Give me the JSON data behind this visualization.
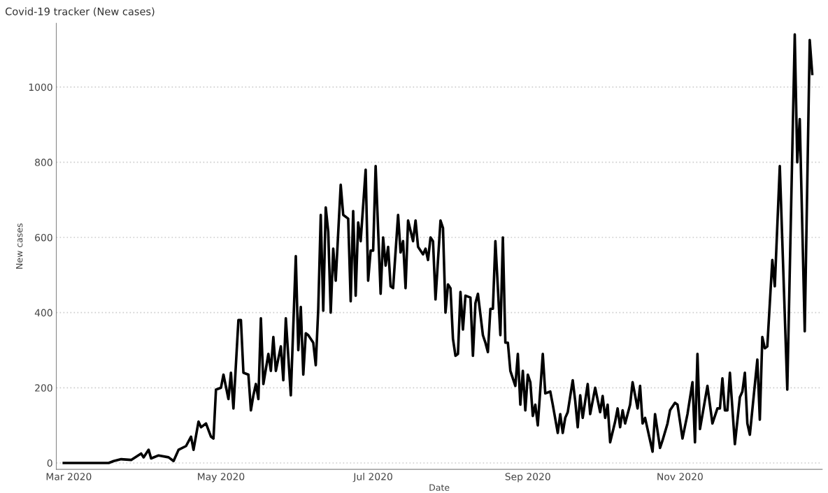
{
  "chart_data": {
    "type": "line",
    "title": "Covid-19 tracker (New cases)",
    "xlabel": "Date",
    "ylabel": "New cases",
    "xlim": [
      "2020-02-25",
      "2020-12-28"
    ],
    "ylim": [
      -17,
      1170
    ],
    "xticks": [
      {
        "value": "2020-03-01",
        "label": "Mar 2020"
      },
      {
        "value": "2020-05-01",
        "label": "May 2020"
      },
      {
        "value": "2020-07-01",
        "label": "Jul 2020"
      },
      {
        "value": "2020-09-01",
        "label": "Sep 2020"
      },
      {
        "value": "2020-11-01",
        "label": "Nov 2020"
      }
    ],
    "yticks": [
      0,
      200,
      400,
      600,
      800,
      1000
    ],
    "grid": "y",
    "series": [
      {
        "color": "#000000",
        "x": [
          "2020-02-28",
          "2020-03-17",
          "2020-03-19",
          "2020-03-22",
          "2020-03-26",
          "2020-03-30",
          "2020-03-31",
          "2020-04-02",
          "2020-04-03",
          "2020-04-06",
          "2020-04-10",
          "2020-04-12",
          "2020-04-14",
          "2020-04-17",
          "2020-04-19",
          "2020-04-20",
          "2020-04-22",
          "2020-04-23",
          "2020-04-25",
          "2020-04-27",
          "2020-04-28",
          "2020-04-29",
          "2020-05-01",
          "2020-05-02",
          "2020-05-04",
          "2020-05-05",
          "2020-05-06",
          "2020-05-08",
          "2020-05-09",
          "2020-05-10",
          "2020-05-12",
          "2020-05-13",
          "2020-05-14",
          "2020-05-15",
          "2020-05-16",
          "2020-05-17",
          "2020-05-18",
          "2020-05-20",
          "2020-05-21",
          "2020-05-22",
          "2020-05-23",
          "2020-05-25",
          "2020-05-26",
          "2020-05-27",
          "2020-05-29",
          "2020-05-31",
          "2020-06-01",
          "2020-06-02",
          "2020-06-03",
          "2020-06-04",
          "2020-06-05",
          "2020-06-07",
          "2020-06-08",
          "2020-06-09",
          "2020-06-10",
          "2020-06-11",
          "2020-06-12",
          "2020-06-13",
          "2020-06-14",
          "2020-06-15",
          "2020-06-16",
          "2020-06-18",
          "2020-06-19",
          "2020-06-21",
          "2020-06-22",
          "2020-06-23",
          "2020-06-24",
          "2020-06-25",
          "2020-06-26",
          "2020-06-28",
          "2020-06-29",
          "2020-06-30",
          "2020-07-01",
          "2020-07-02",
          "2020-07-04",
          "2020-07-05",
          "2020-07-06",
          "2020-07-07",
          "2020-07-08",
          "2020-07-09",
          "2020-07-11",
          "2020-07-12",
          "2020-07-13",
          "2020-07-14",
          "2020-07-15",
          "2020-07-17",
          "2020-07-18",
          "2020-07-19",
          "2020-07-21",
          "2020-07-22",
          "2020-07-23",
          "2020-07-24",
          "2020-07-25",
          "2020-07-26",
          "2020-07-28",
          "2020-07-29",
          "2020-07-30",
          "2020-07-31",
          "2020-08-01",
          "2020-08-02",
          "2020-08-03",
          "2020-08-04",
          "2020-08-05",
          "2020-08-06",
          "2020-08-07",
          "2020-08-09",
          "2020-08-10",
          "2020-08-11",
          "2020-08-12",
          "2020-08-14",
          "2020-08-15",
          "2020-08-16",
          "2020-08-17",
          "2020-08-18",
          "2020-08-19",
          "2020-08-21",
          "2020-08-22",
          "2020-08-23",
          "2020-08-24",
          "2020-08-25",
          "2020-08-27",
          "2020-08-28",
          "2020-08-29",
          "2020-08-30",
          "2020-08-31",
          "2020-09-01",
          "2020-09-02",
          "2020-09-03",
          "2020-09-04",
          "2020-09-05",
          "2020-09-07",
          "2020-09-08",
          "2020-09-10",
          "2020-09-11",
          "2020-09-13",
          "2020-09-14",
          "2020-09-15",
          "2020-09-16",
          "2020-09-17",
          "2020-09-19",
          "2020-09-20",
          "2020-09-21",
          "2020-09-22",
          "2020-09-23",
          "2020-09-25",
          "2020-09-26",
          "2020-09-28",
          "2020-09-30",
          "2020-10-01",
          "2020-10-02",
          "2020-10-03",
          "2020-10-04",
          "2020-10-06",
          "2020-10-07",
          "2020-10-08",
          "2020-10-09",
          "2020-10-10",
          "2020-10-12",
          "2020-10-13",
          "2020-10-15",
          "2020-10-16",
          "2020-10-17",
          "2020-10-18",
          "2020-10-21",
          "2020-10-22",
          "2020-10-24",
          "2020-10-25",
          "2020-10-27",
          "2020-10-28",
          "2020-10-30",
          "2020-10-31",
          "2020-11-02",
          "2020-11-04",
          "2020-11-06",
          "2020-11-07",
          "2020-11-08",
          "2020-11-09",
          "2020-11-12",
          "2020-11-14",
          "2020-11-16",
          "2020-11-17",
          "2020-11-18",
          "2020-11-19",
          "2020-11-20",
          "2020-11-21",
          "2020-11-23",
          "2020-11-25",
          "2020-11-26",
          "2020-11-27",
          "2020-11-28",
          "2020-11-29",
          "2020-12-02",
          "2020-12-03",
          "2020-12-04",
          "2020-12-05",
          "2020-12-06",
          "2020-12-08",
          "2020-12-09",
          "2020-12-11",
          "2020-12-14",
          "2020-12-17",
          "2020-12-18",
          "2020-12-19",
          "2020-12-21",
          "2020-12-23",
          "2020-12-24"
        ],
        "values": [
          0,
          0,
          5,
          10,
          8,
          25,
          15,
          35,
          12,
          20,
          15,
          5,
          35,
          45,
          70,
          35,
          110,
          95,
          105,
          70,
          65,
          195,
          200,
          235,
          170,
          240,
          145,
          380,
          380,
          240,
          235,
          140,
          180,
          210,
          170,
          385,
          210,
          290,
          245,
          335,
          245,
          310,
          220,
          385,
          180,
          550,
          300,
          415,
          235,
          345,
          340,
          320,
          260,
          410,
          660,
          405,
          680,
          615,
          400,
          570,
          485,
          740,
          660,
          650,
          430,
          670,
          445,
          640,
          590,
          780,
          485,
          565,
          565,
          790,
          450,
          600,
          525,
          575,
          470,
          465,
          660,
          560,
          590,
          465,
          645,
          590,
          645,
          575,
          555,
          570,
          540,
          600,
          590,
          435,
          645,
          625,
          400,
          475,
          465,
          330,
          285,
          290,
          455,
          355,
          445,
          440,
          285,
          425,
          450,
          340,
          320,
          295,
          410,
          410,
          590,
          340,
          600,
          320,
          320,
          245,
          205,
          290,
          155,
          245,
          140,
          235,
          215,
          125,
          155,
          100,
          290,
          185,
          190,
          155,
          80,
          130,
          80,
          120,
          135,
          220,
          165,
          95,
          180,
          120,
          210,
          130,
          200,
          135,
          178,
          120,
          155,
          55,
          110,
          145,
          95,
          140,
          105,
          155,
          215,
          145,
          205,
          105,
          120,
          30,
          130,
          40,
          60,
          105,
          140,
          160,
          155,
          65,
          130,
          215,
          55,
          290,
          90,
          205,
          105,
          145,
          145,
          225,
          140,
          140,
          240,
          50,
          175,
          190,
          240,
          105,
          75,
          275,
          115,
          335,
          305,
          310,
          540,
          470,
          790,
          195,
          1140,
          800,
          915,
          350,
          1125,
          1035
        ]
      }
    ]
  }
}
